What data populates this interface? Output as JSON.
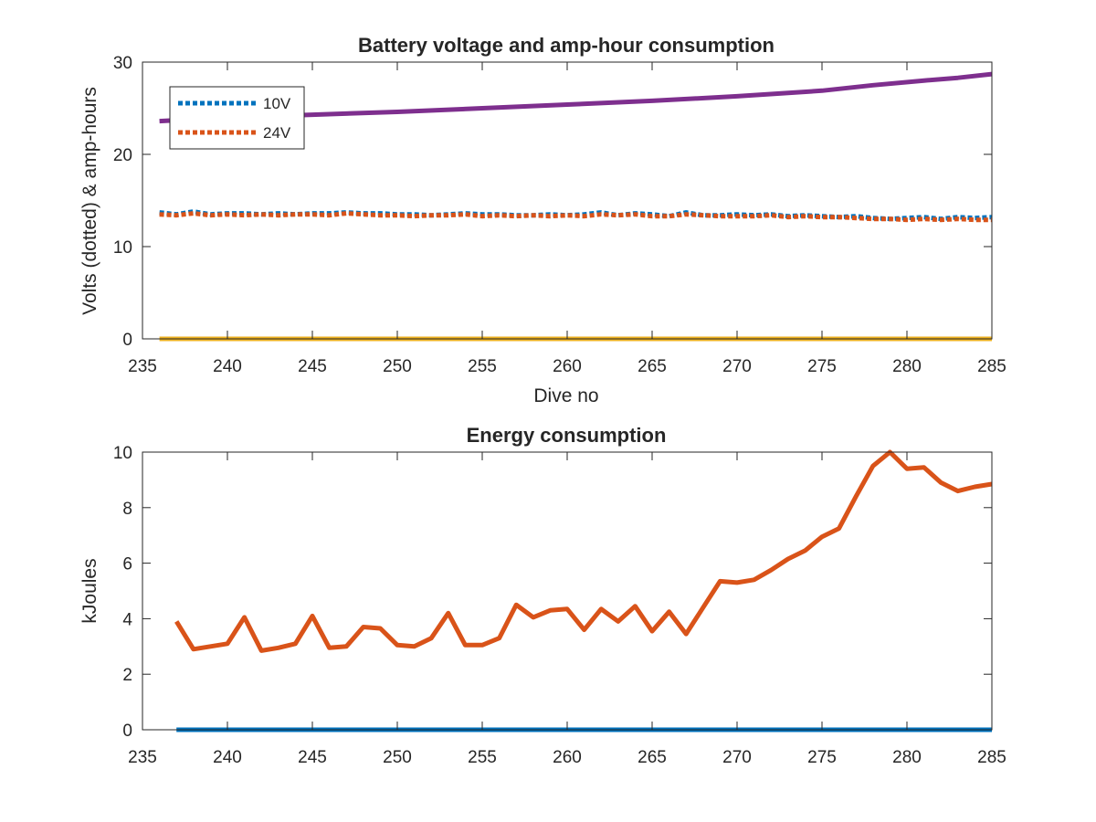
{
  "chart_data": [
    {
      "type": "line",
      "title": "Battery voltage and amp-hour consumption",
      "xlabel": "Dive no",
      "ylabel": "Volts (dotted) & amp-hours",
      "xlim": [
        235,
        285
      ],
      "ylim": [
        0,
        30
      ],
      "xticks": [
        235,
        240,
        245,
        250,
        255,
        260,
        265,
        270,
        275,
        280,
        285
      ],
      "yticks": [
        0,
        10,
        20,
        30
      ],
      "grid": false,
      "legend": {
        "location": "top-left",
        "entries": [
          "10V",
          "24V"
        ]
      },
      "series": [
        {
          "name": "10V",
          "style": "dotted",
          "color": "#0072BD",
          "x": [
            236,
            237,
            238,
            239,
            240,
            241,
            242,
            243,
            244,
            245,
            246,
            247,
            248,
            249,
            250,
            251,
            252,
            253,
            254,
            255,
            256,
            257,
            258,
            259,
            260,
            261,
            262,
            263,
            264,
            265,
            266,
            267,
            268,
            269,
            270,
            271,
            272,
            273,
            274,
            275,
            276,
            277,
            278,
            279,
            280,
            281,
            282,
            283,
            284,
            285
          ],
          "y": [
            13.7,
            13.5,
            13.8,
            13.5,
            13.6,
            13.6,
            13.5,
            13.6,
            13.5,
            13.6,
            13.6,
            13.7,
            13.6,
            13.6,
            13.5,
            13.5,
            13.4,
            13.5,
            13.6,
            13.5,
            13.5,
            13.4,
            13.4,
            13.5,
            13.4,
            13.5,
            13.7,
            13.4,
            13.6,
            13.5,
            13.3,
            13.7,
            13.4,
            13.4,
            13.5,
            13.4,
            13.5,
            13.3,
            13.4,
            13.3,
            13.2,
            13.3,
            13.1,
            13.0,
            13.1,
            13.2,
            13.0,
            13.2,
            13.1,
            13.2
          ]
        },
        {
          "name": "24V",
          "style": "dotted",
          "color": "#D95319",
          "x": [
            236,
            237,
            238,
            239,
            240,
            241,
            242,
            243,
            244,
            245,
            246,
            247,
            248,
            249,
            250,
            251,
            252,
            253,
            254,
            255,
            256,
            257,
            258,
            259,
            260,
            261,
            262,
            263,
            264,
            265,
            266,
            267,
            268,
            269,
            270,
            271,
            272,
            273,
            274,
            275,
            276,
            277,
            278,
            279,
            280,
            281,
            282,
            283,
            284,
            285
          ],
          "y": [
            13.5,
            13.4,
            13.6,
            13.4,
            13.5,
            13.4,
            13.5,
            13.4,
            13.5,
            13.5,
            13.4,
            13.6,
            13.5,
            13.4,
            13.4,
            13.3,
            13.4,
            13.4,
            13.5,
            13.3,
            13.4,
            13.3,
            13.4,
            13.3,
            13.4,
            13.3,
            13.5,
            13.4,
            13.5,
            13.3,
            13.3,
            13.5,
            13.4,
            13.3,
            13.3,
            13.3,
            13.4,
            13.2,
            13.3,
            13.2,
            13.2,
            13.1,
            13.0,
            13.0,
            12.9,
            13.0,
            12.9,
            13.0,
            12.9,
            12.9
          ]
        },
        {
          "style": "solid",
          "color": "#EDB120",
          "x": [
            236,
            285
          ],
          "y": [
            0,
            0
          ]
        },
        {
          "style": "solid",
          "color": "#7E2F8E",
          "x": [
            236,
            240,
            245,
            250,
            255,
            260,
            265,
            270,
            275,
            278,
            281,
            283,
            285
          ],
          "y": [
            23.6,
            24.0,
            24.3,
            24.6,
            25.0,
            25.4,
            25.8,
            26.3,
            26.9,
            27.5,
            28.0,
            28.3,
            28.7
          ]
        }
      ]
    },
    {
      "type": "line",
      "title": "Energy consumption",
      "xlabel": "",
      "ylabel": "kJoules",
      "xlim": [
        235,
        285
      ],
      "ylim": [
        0,
        10
      ],
      "xticks": [
        235,
        240,
        245,
        250,
        255,
        260,
        265,
        270,
        275,
        280,
        285
      ],
      "yticks": [
        0,
        2,
        4,
        6,
        8,
        10
      ],
      "grid": false,
      "series": [
        {
          "style": "solid",
          "color": "#0072BD",
          "x": [
            237,
            285
          ],
          "y": [
            0,
            0
          ]
        },
        {
          "style": "solid",
          "color": "#D95319",
          "x": [
            237,
            238,
            239,
            240,
            241,
            242,
            243,
            244,
            245,
            246,
            247,
            248,
            249,
            250,
            251,
            252,
            253,
            254,
            255,
            256,
            257,
            258,
            259,
            260,
            261,
            262,
            263,
            264,
            265,
            266,
            267,
            268,
            269,
            270,
            271,
            272,
            273,
            274,
            275,
            276,
            277,
            278,
            279,
            280,
            281,
            282,
            283,
            284,
            285
          ],
          "y": [
            3.9,
            2.9,
            3.0,
            3.1,
            4.05,
            2.85,
            2.95,
            3.1,
            4.1,
            2.95,
            3.0,
            3.7,
            3.65,
            3.05,
            3.0,
            3.3,
            4.2,
            3.05,
            3.05,
            3.3,
            4.5,
            4.05,
            4.3,
            4.35,
            3.6,
            4.35,
            3.9,
            4.45,
            3.55,
            4.25,
            3.45,
            4.4,
            5.35,
            5.3,
            5.4,
            5.75,
            6.15,
            6.45,
            6.95,
            7.25,
            8.4,
            9.5,
            10.0,
            9.4,
            9.45,
            8.9,
            8.6,
            8.75,
            8.85
          ]
        }
      ]
    }
  ]
}
